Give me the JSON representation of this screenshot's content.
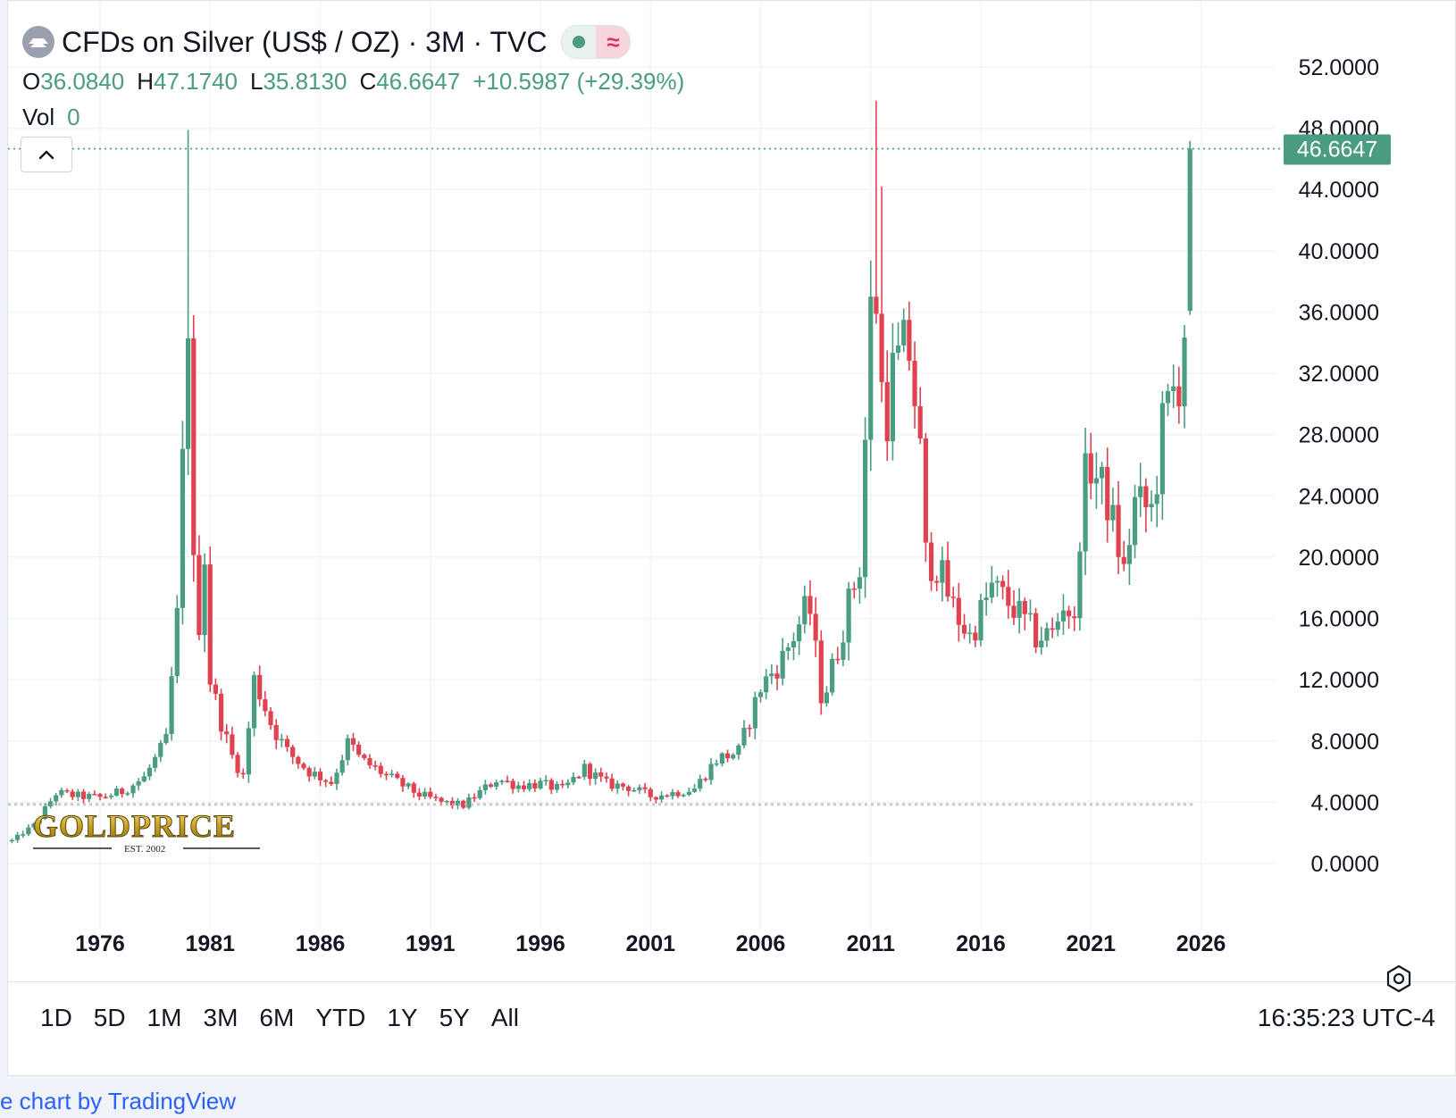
{
  "header": {
    "title": "CFDs on Silver (US$ / OZ) · 3M · TVC",
    "ohlc": [
      {
        "key": "O",
        "value": "36.0840"
      },
      {
        "key": "H",
        "value": "47.1740"
      },
      {
        "key": "L",
        "value": "35.8130"
      },
      {
        "key": "C",
        "value": "46.6647"
      }
    ],
    "change": "+10.5987 (+29.39%)",
    "vol_label": "Vol",
    "vol_value": "0",
    "wave_symbol": "≈"
  },
  "icons": [
    "symbol-logo-icon",
    "market-status-dot-icon",
    "wave-icon",
    "chevron-up-icon",
    "settings-hexagon-icon"
  ],
  "watermark": {
    "text": "GOLDPRICE",
    "sub": "EST. 2002"
  },
  "range_buttons": [
    "1D",
    "5D",
    "1M",
    "3M",
    "6M",
    "YTD",
    "1Y",
    "5Y",
    "All"
  ],
  "clock": "16:35:23 UTC-4",
  "footer": "e chart by TradingView",
  "colors": {
    "up": "#4a9c82",
    "down": "#e0424f",
    "price_label": "#4a9c82",
    "grid": "#f0f3fa"
  },
  "chart_data": {
    "type": "candlestick",
    "title": "CFDs on Silver (US$ / OZ) · 3M · TVC",
    "ylim": [
      -2,
      54
    ],
    "y_ticks": [
      "52.0000",
      "48.0000",
      "44.0000",
      "40.0000",
      "36.0000",
      "32.0000",
      "28.0000",
      "24.0000",
      "20.0000",
      "16.0000",
      "12.0000",
      "8.0000",
      "4.0000",
      "0.0000"
    ],
    "y_tick_values": [
      52,
      48,
      44,
      40,
      36,
      32,
      28,
      24,
      20,
      16,
      12,
      8,
      4,
      0
    ],
    "x_ticks": [
      "1976",
      "1981",
      "1986",
      "1991",
      "1996",
      "2001",
      "2006",
      "2011",
      "2016",
      "2021",
      "2026"
    ],
    "x_tick_values": [
      1976,
      1981,
      1986,
      1991,
      1996,
      2001,
      2006,
      2011,
      2016,
      2021,
      2026
    ],
    "xlim": [
      1971.9,
      2029.4
    ],
    "last_price": 46.6647,
    "last_price_label": "46.6647",
    "reference_line": 3.9,
    "grid": true,
    "anchors": [
      [
        1972.0,
        1.5
      ],
      [
        1973.0,
        2.5
      ],
      [
        1974.0,
        4.6
      ],
      [
        1975.0,
        4.4
      ],
      [
        1976.0,
        4.3
      ],
      [
        1977.0,
        4.7
      ],
      [
        1978.0,
        5.6
      ],
      [
        1979.0,
        8.0
      ],
      [
        1979.5,
        16.0
      ],
      [
        1979.8,
        28.0
      ],
      [
        1980.05,
        37.8
      ],
      [
        1980.3,
        14.5
      ],
      [
        1980.6,
        16.5
      ],
      [
        1980.8,
        21.5
      ],
      [
        1981.0,
        12.0
      ],
      [
        1981.6,
        8.7
      ],
      [
        1982.0,
        7.0
      ],
      [
        1982.5,
        5.7
      ],
      [
        1983.0,
        12.0
      ],
      [
        1983.3,
        11.0
      ],
      [
        1983.8,
        9.0
      ],
      [
        1984.5,
        7.3
      ],
      [
        1985.5,
        6.0
      ],
      [
        1986.5,
        5.3
      ],
      [
        1987.3,
        8.0
      ],
      [
        1987.8,
        6.8
      ],
      [
        1988.5,
        6.2
      ],
      [
        1989.5,
        5.3
      ],
      [
        1990.5,
        4.5
      ],
      [
        1991.5,
        4.0
      ],
      [
        1992.5,
        3.8
      ],
      [
        1993.2,
        4.6
      ],
      [
        1994.0,
        5.5
      ],
      [
        1995.0,
        5.1
      ],
      [
        1996.0,
        5.2
      ],
      [
        1997.0,
        4.8
      ],
      [
        1998.0,
        6.2
      ],
      [
        1999.0,
        5.2
      ],
      [
        2000.0,
        5.0
      ],
      [
        2001.0,
        4.4
      ],
      [
        2002.0,
        4.6
      ],
      [
        2003.0,
        4.9
      ],
      [
        2004.0,
        6.8
      ],
      [
        2005.0,
        7.3
      ],
      [
        2006.0,
        11.5
      ],
      [
        2007.0,
        13.4
      ],
      [
        2008.2,
        17.0
      ],
      [
        2008.8,
        10.5
      ],
      [
        2009.5,
        14.0
      ],
      [
        2010.0,
        17.0
      ],
      [
        2010.5,
        19.5
      ],
      [
        2011.0,
        36.0
      ],
      [
        2011.3,
        37.0
      ],
      [
        2011.6,
        28.0
      ],
      [
        2012.0,
        32.0
      ],
      [
        2012.7,
        34.0
      ],
      [
        2013.2,
        28.0
      ],
      [
        2013.5,
        20.0
      ],
      [
        2014.0,
        19.5
      ],
      [
        2014.8,
        16.5
      ],
      [
        2015.5,
        14.8
      ],
      [
        2016.5,
        18.0
      ],
      [
        2017.5,
        16.7
      ],
      [
        2018.5,
        14.8
      ],
      [
        2019.3,
        15.0
      ],
      [
        2019.9,
        17.8
      ],
      [
        2020.2,
        14.0
      ],
      [
        2020.6,
        24.5
      ],
      [
        2021.0,
        26.0
      ],
      [
        2021.8,
        23.5
      ],
      [
        2022.5,
        19.0
      ],
      [
        2023.0,
        23.5
      ],
      [
        2023.8,
        23.0
      ],
      [
        2024.3,
        29.0
      ],
      [
        2024.8,
        31.0
      ],
      [
        2025.1,
        32.0
      ],
      [
        2025.3,
        36.0
      ],
      [
        2025.5,
        46.66
      ]
    ]
  }
}
